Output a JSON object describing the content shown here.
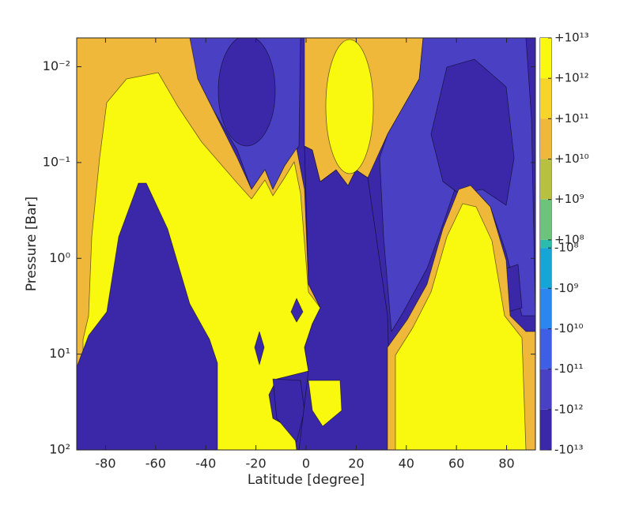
{
  "chart_data": {
    "type": "contour",
    "xlabel": "Latitude [degree]",
    "ylabel": "Pressure [Bar]",
    "xlim": [
      -91.5,
      91.5
    ],
    "xticks": [
      -80,
      -60,
      -40,
      -20,
      0,
      20,
      40,
      60,
      80
    ],
    "ylim": [
      0.005,
      100
    ],
    "y_log": true,
    "y_reversed": true,
    "yticks": [
      {
        "value": 0.01,
        "label": "10⁻²"
      },
      {
        "value": 0.1,
        "label": "10⁻¹"
      },
      {
        "value": 1,
        "label": "10⁰"
      },
      {
        "value": 10,
        "label": "10¹"
      },
      {
        "value": 100,
        "label": "10²"
      }
    ],
    "colorbar_lim": [
      -10000000000000,
      10000000000000
    ],
    "colorbar_ticks": [
      {
        "value": 10000000000000,
        "label": "+10¹³"
      },
      {
        "value": 1000000000000,
        "label": "+10¹²"
      },
      {
        "value": 100000000000,
        "label": "+10¹¹"
      },
      {
        "value": 10000000000,
        "label": "+10¹⁰"
      },
      {
        "value": 1000000000,
        "label": "+10⁹"
      },
      {
        "value": 100000000,
        "label": "+10⁸"
      },
      {
        "value": -100000000,
        "label": "-10⁸"
      },
      {
        "value": -1000000000,
        "label": "-10⁹"
      },
      {
        "value": -10000000000,
        "label": "-10¹⁰"
      },
      {
        "value": -100000000000,
        "label": "-10¹¹"
      },
      {
        "value": -1000000000000,
        "label": "-10¹²"
      },
      {
        "value": -10000000000000,
        "label": "-10¹³"
      }
    ],
    "palette": [
      "#3a28a8",
      "#4a40c4",
      "#3f5ee6",
      "#2c86f0",
      "#16a6d6",
      "#2bbcae",
      "#6cc47a",
      "#b8c042",
      "#f0b83a",
      "#f7d42a",
      "#f9f90f"
    ]
  }
}
